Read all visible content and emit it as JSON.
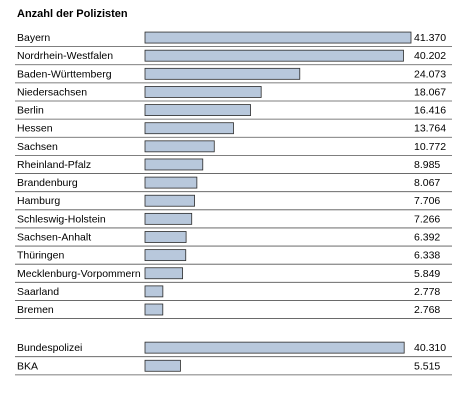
{
  "chart_data": {
    "type": "bar",
    "orientation": "horizontal",
    "title": "Anzahl der Polizisten",
    "xlabel": "",
    "ylabel": "",
    "xlim": [
      0,
      41370
    ],
    "grid": false,
    "legend": "none",
    "bar_color": "#b8c8dc",
    "bar_border_color": "#2b2b2b",
    "separator_color": "#555555",
    "groups": [
      {
        "rows": [
          {
            "label": "Bayern",
            "value": 41370,
            "value_label": "41.370"
          },
          {
            "label": "Nordrhein-Westfalen",
            "value": 40202,
            "value_label": "40.202"
          },
          {
            "label": "Baden-Württemberg",
            "value": 24073,
            "value_label": "24.073"
          },
          {
            "label": "Niedersachsen",
            "value": 18067,
            "value_label": "18.067"
          },
          {
            "label": "Berlin",
            "value": 16416,
            "value_label": "16.416"
          },
          {
            "label": "Hessen",
            "value": 13764,
            "value_label": "13.764"
          },
          {
            "label": "Sachsen",
            "value": 10772,
            "value_label": "10.772"
          },
          {
            "label": "Rheinland-Pfalz",
            "value": 8985,
            "value_label": "8.985"
          },
          {
            "label": "Brandenburg",
            "value": 8067,
            "value_label": "8.067"
          },
          {
            "label": "Hamburg",
            "value": 7706,
            "value_label": "7.706"
          },
          {
            "label": "Schleswig-Holstein",
            "value": 7266,
            "value_label": "7.266"
          },
          {
            "label": "Sachsen-Anhalt",
            "value": 6392,
            "value_label": "6.392"
          },
          {
            "label": "Thüringen",
            "value": 6338,
            "value_label": "6.338"
          },
          {
            "label": "Mecklenburg-Vorpommern",
            "value": 5849,
            "value_label": "5.849"
          },
          {
            "label": "Saarland",
            "value": 2778,
            "value_label": "2.778"
          },
          {
            "label": "Bremen",
            "value": 2768,
            "value_label": "2.768"
          }
        ]
      },
      {
        "rows": [
          {
            "label": "Bundespolizei",
            "value": 40310,
            "value_label": "40.310"
          },
          {
            "label": "BKA",
            "value": 5515,
            "value_label": "5.515"
          }
        ]
      }
    ]
  }
}
